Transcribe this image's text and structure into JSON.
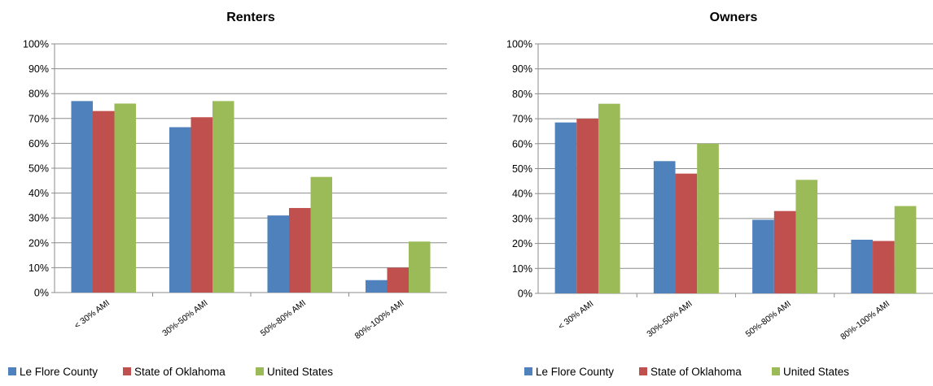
{
  "chart_data": [
    {
      "type": "bar",
      "title": "Renters",
      "categories": [
        "< 30% AMI",
        "30%-50% AMI",
        "50%-80% AMI",
        "80%-100% AMI"
      ],
      "series": [
        {
          "name": "Le Flore County",
          "color": "#4f81bd",
          "values": [
            77,
            66.5,
            31,
            5
          ]
        },
        {
          "name": "State of Oklahoma",
          "color": "#c0504d",
          "values": [
            73,
            70.5,
            34,
            10
          ]
        },
        {
          "name": "United States",
          "color": "#9bbb59",
          "values": [
            76,
            77,
            46.5,
            20.5
          ]
        }
      ],
      "ylim": [
        0,
        100
      ],
      "yticks": [
        "0%",
        "10%",
        "20%",
        "30%",
        "40%",
        "50%",
        "60%",
        "70%",
        "80%",
        "90%",
        "100%"
      ],
      "grid": true,
      "legend": "bottom"
    },
    {
      "type": "bar",
      "title": "Owners",
      "categories": [
        "< 30% AMI",
        "30%-50% AMI",
        "50%-80% AMI",
        "80%-100% AMI"
      ],
      "series": [
        {
          "name": "Le Flore County",
          "color": "#4f81bd",
          "values": [
            68.5,
            53,
            29.5,
            21.5
          ]
        },
        {
          "name": "State of Oklahoma",
          "color": "#c0504d",
          "values": [
            70,
            48,
            33,
            21
          ]
        },
        {
          "name": "United States",
          "color": "#9bbb59",
          "values": [
            76,
            60,
            45.5,
            35
          ]
        }
      ],
      "ylim": [
        0,
        100
      ],
      "yticks": [
        "0%",
        "10%",
        "20%",
        "30%",
        "40%",
        "50%",
        "60%",
        "70%",
        "80%",
        "90%",
        "100%"
      ],
      "grid": true,
      "legend": "bottom"
    }
  ]
}
